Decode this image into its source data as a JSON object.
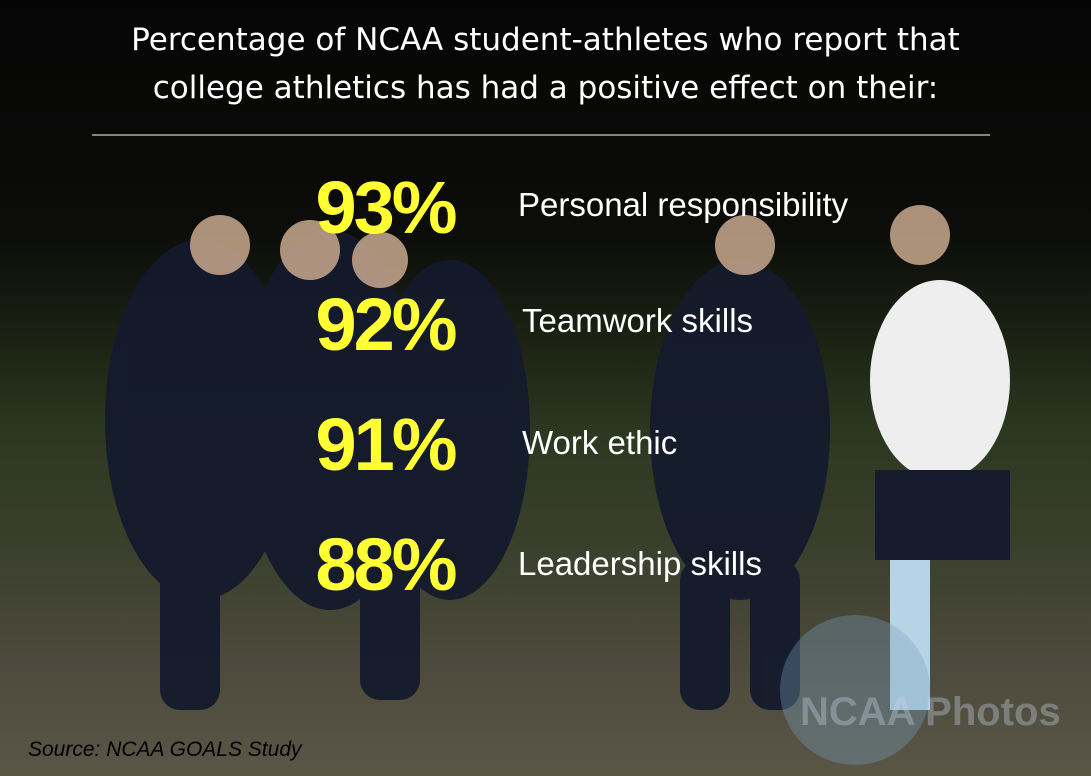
{
  "title": {
    "lines": [
      "Percentage of NCAA student-athletes who report that",
      "college athletics has had a positive effect on their:"
    ]
  },
  "stats": [
    {
      "value": "93%",
      "label": "Personal responsibility"
    },
    {
      "value": "92%",
      "label": "Teamwork skills"
    },
    {
      "value": "91%",
      "label": "Work ethic"
    },
    {
      "value": "88%",
      "label": "Leadership skills"
    }
  ],
  "watermark": "NCAA Photos",
  "source": "Source: NCAA GOALS Study"
}
